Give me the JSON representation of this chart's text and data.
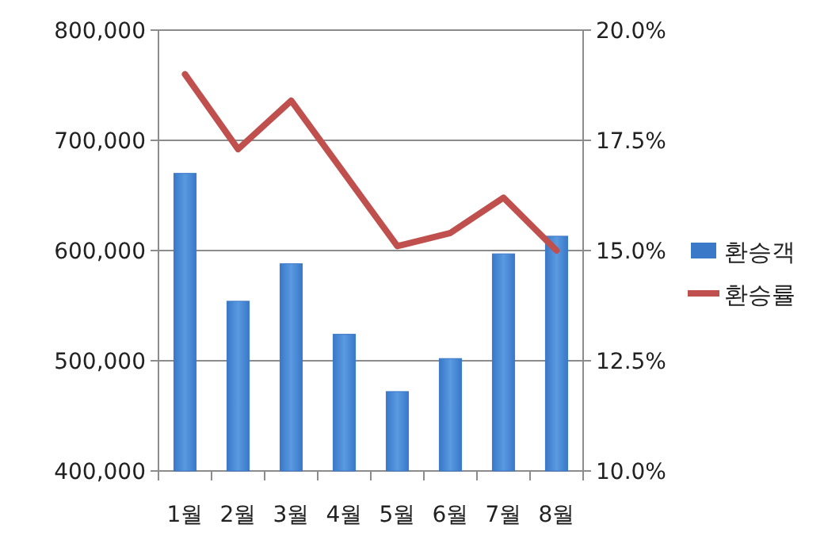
{
  "chart_data": {
    "type": "bar",
    "categories": [
      "1월",
      "2월",
      "3월",
      "4월",
      "5월",
      "6월",
      "7월",
      "8월"
    ],
    "series": [
      {
        "name": "환승객",
        "color": "#3a78c8",
        "values": [
          670000,
          554000,
          588000,
          524000,
          472000,
          502000,
          597000,
          613000
        ]
      },
      {
        "name": "환승률",
        "type": "line",
        "axis": "y2",
        "color": "#c0504d",
        "values": [
          19.0,
          17.3,
          18.4,
          16.75,
          15.1,
          15.4,
          16.2,
          15.0
        ]
      }
    ],
    "ylim": [
      400000,
      800000
    ],
    "yticks": [
      {
        "value": 400000,
        "label": "400,000"
      },
      {
        "value": 500000,
        "label": "500,000"
      },
      {
        "value": 600000,
        "label": "600,000"
      },
      {
        "value": 700000,
        "label": "700,000"
      },
      {
        "value": 800000,
        "label": "800,000"
      }
    ],
    "y2lim": [
      10,
      20
    ],
    "y2ticks": [
      {
        "value": 10,
        "label": "10.0%"
      },
      {
        "value": 12.5,
        "label": "12.5%"
      },
      {
        "value": 15,
        "label": "15.0%"
      },
      {
        "value": 17.5,
        "label": "17.5%"
      },
      {
        "value": 20,
        "label": "20.0%"
      }
    ],
    "grid": "y",
    "legend": "right",
    "marker": "none",
    "line_style": "solid"
  }
}
